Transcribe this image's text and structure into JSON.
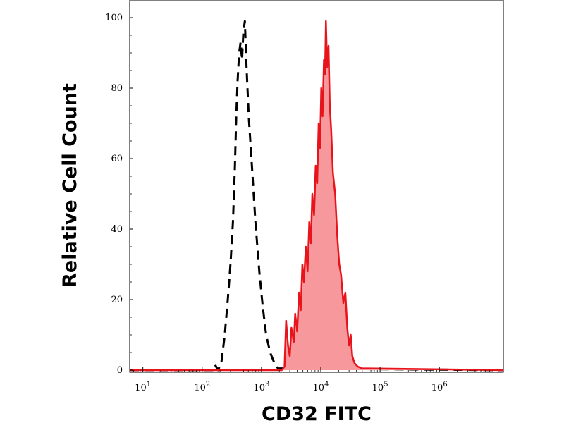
{
  "chart_data": {
    "type": "area",
    "xlabel": "CD32 FITC",
    "ylabel": "Relative Cell Count",
    "x_scale": "log",
    "xlim": [
      6,
      12000000
    ],
    "ylim": [
      0,
      100
    ],
    "x_ticks": [
      {
        "base": "10",
        "exp": "1",
        "value": 10
      },
      {
        "base": "10",
        "exp": "2",
        "value": 100
      },
      {
        "base": "10",
        "exp": "3",
        "value": 1000
      },
      {
        "base": "10",
        "exp": "4",
        "value": 10000
      },
      {
        "base": "10",
        "exp": "5",
        "value": 100000
      },
      {
        "base": "10",
        "exp": "6",
        "value": 1000000
      }
    ],
    "y_ticks": [
      "0",
      "20",
      "40",
      "60",
      "80",
      "100"
    ],
    "grid": false,
    "legend": "none",
    "series": [
      {
        "style": "dashed",
        "color": "#000000",
        "filled": false,
        "points": [
          [
            6,
            0
          ],
          [
            150,
            0
          ],
          [
            165,
            1.5
          ],
          [
            185,
            0
          ],
          [
            210,
            2
          ],
          [
            240,
            10
          ],
          [
            270,
            20
          ],
          [
            300,
            30
          ],
          [
            330,
            42
          ],
          [
            355,
            57
          ],
          [
            375,
            72
          ],
          [
            395,
            82
          ],
          [
            420,
            90
          ],
          [
            445,
            93
          ],
          [
            470,
            88
          ],
          [
            495,
            96
          ],
          [
            525,
            99
          ],
          [
            560,
            86
          ],
          [
            610,
            72
          ],
          [
            690,
            58
          ],
          [
            790,
            42
          ],
          [
            920,
            28
          ],
          [
            1050,
            18
          ],
          [
            1200,
            10
          ],
          [
            1400,
            5
          ],
          [
            1650,
            2
          ],
          [
            1900,
            0.5
          ],
          [
            12000000,
            0
          ]
        ]
      },
      {
        "style": "solid",
        "color": "#e8141c",
        "fill": "#f7999c",
        "filled": true,
        "points": [
          [
            6,
            0
          ],
          [
            2200,
            0
          ],
          [
            2450,
            1
          ],
          [
            2600,
            14
          ],
          [
            2800,
            7
          ],
          [
            3000,
            4
          ],
          [
            3200,
            12
          ],
          [
            3500,
            8
          ],
          [
            3700,
            16
          ],
          [
            4000,
            11
          ],
          [
            4300,
            22
          ],
          [
            4600,
            17
          ],
          [
            4900,
            30
          ],
          [
            5200,
            25
          ],
          [
            5600,
            35
          ],
          [
            6000,
            28
          ],
          [
            6400,
            42
          ],
          [
            6800,
            36
          ],
          [
            7200,
            50
          ],
          [
            7700,
            44
          ],
          [
            8200,
            58
          ],
          [
            8700,
            53
          ],
          [
            9200,
            70
          ],
          [
            9700,
            63
          ],
          [
            10200,
            80
          ],
          [
            10700,
            72
          ],
          [
            11300,
            88
          ],
          [
            11800,
            84
          ],
          [
            12200,
            99
          ],
          [
            12800,
            86
          ],
          [
            13500,
            92
          ],
          [
            14200,
            75
          ],
          [
            15000,
            68
          ],
          [
            16000,
            56
          ],
          [
            17500,
            50
          ],
          [
            19000,
            38
          ],
          [
            20500,
            30
          ],
          [
            22000,
            27
          ],
          [
            24000,
            19
          ],
          [
            26000,
            22
          ],
          [
            28000,
            12
          ],
          [
            30000,
            7
          ],
          [
            32000,
            10
          ],
          [
            34000,
            4
          ],
          [
            37000,
            2
          ],
          [
            42000,
            1
          ],
          [
            50000,
            0.5
          ],
          [
            12000000,
            0
          ]
        ]
      }
    ]
  }
}
